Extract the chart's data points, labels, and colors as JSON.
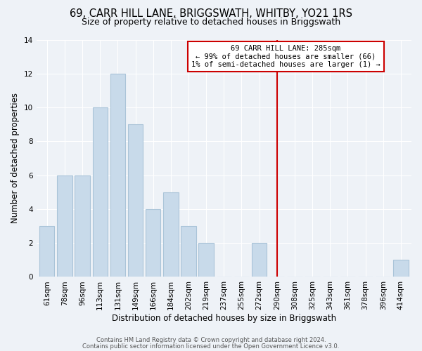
{
  "title": "69, CARR HILL LANE, BRIGGSWATH, WHITBY, YO21 1RS",
  "subtitle": "Size of property relative to detached houses in Briggswath",
  "xlabel": "Distribution of detached houses by size in Briggswath",
  "ylabel": "Number of detached properties",
  "bar_labels": [
    "61sqm",
    "78sqm",
    "96sqm",
    "113sqm",
    "131sqm",
    "149sqm",
    "166sqm",
    "184sqm",
    "202sqm",
    "219sqm",
    "237sqm",
    "255sqm",
    "272sqm",
    "290sqm",
    "308sqm",
    "325sqm",
    "343sqm",
    "361sqm",
    "378sqm",
    "396sqm",
    "414sqm"
  ],
  "bar_values": [
    3,
    6,
    6,
    10,
    12,
    9,
    4,
    5,
    3,
    2,
    0,
    0,
    2,
    0,
    0,
    0,
    0,
    0,
    0,
    0,
    1
  ],
  "bar_color": "#c8daea",
  "bar_edge_color": "#aac4d8",
  "vline_x_index": 13,
  "vline_color": "#cc0000",
  "annotation_title": "69 CARR HILL LANE: 285sqm",
  "annotation_line1": "← 99% of detached houses are smaller (66)",
  "annotation_line2": "1% of semi-detached houses are larger (1) →",
  "annotation_box_color": "#ffffff",
  "annotation_box_edge": "#cc0000",
  "ylim": [
    0,
    14
  ],
  "yticks": [
    0,
    2,
    4,
    6,
    8,
    10,
    12,
    14
  ],
  "footer1": "Contains HM Land Registry data © Crown copyright and database right 2024.",
  "footer2": "Contains public sector information licensed under the Open Government Licence v3.0.",
  "bg_color": "#eef2f7",
  "title_fontsize": 10.5,
  "subtitle_fontsize": 9.0,
  "axis_fontsize": 8.5,
  "tick_fontsize": 7.5
}
